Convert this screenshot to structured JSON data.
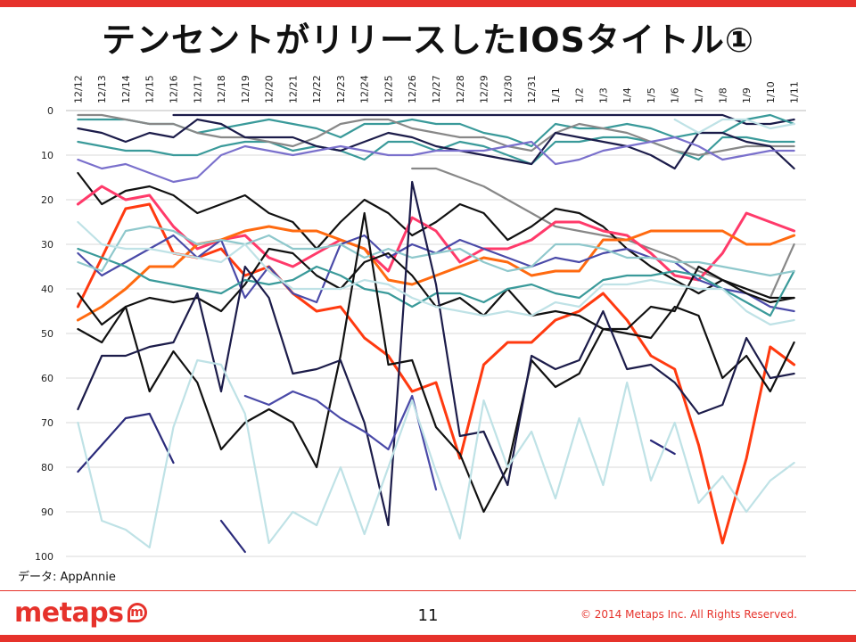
{
  "slide": {
    "title": "テンセントがリリースしたIOSタイトル①",
    "source_note": "データ: AppAnnie",
    "page_number": "11",
    "copyright": "© 2014  Metaps Inc. All Rights Reserved.",
    "logo_text": "metaps",
    "logo_mark": "m"
  },
  "chart_data": {
    "type": "line",
    "title": "",
    "xlabel": "",
    "ylabel": "",
    "categories": [
      "12/12",
      "12/13",
      "12/14",
      "12/15",
      "12/16",
      "12/17",
      "12/18",
      "12/19",
      "12/20",
      "12/21",
      "12/22",
      "12/23",
      "12/24",
      "12/25",
      "12/26",
      "12/27",
      "12/28",
      "12/29",
      "12/30",
      "12/31",
      "1/1",
      "1/2",
      "1/3",
      "1/4",
      "1/5",
      "1/6",
      "1/7",
      "1/8",
      "1/9",
      "1/10",
      "1/11"
    ],
    "y_reversed": true,
    "ylim": [
      0,
      100
    ],
    "yticks": [
      0,
      10,
      20,
      30,
      40,
      50,
      60,
      70,
      80,
      90,
      100
    ],
    "grid": true,
    "colors": {
      "dark_navy": "#1c1c4a",
      "teal": "#3a9a9a",
      "gray": "#888888",
      "slate_blue": "#4a4aa8",
      "periwinkle": "#7a70cc",
      "light_teal": "#8fc8cc",
      "pale_cyan": "#bfe2e6",
      "orange": "#ff6a10",
      "red_orange": "#ff3a10",
      "pink": "#ff3a6a",
      "black": "#111111",
      "navy": "#2a2a7a"
    },
    "series": [
      {
        "color": "#1c1c4a",
        "values": [
          null,
          null,
          null,
          null,
          1,
          1,
          1,
          1,
          1,
          1,
          1,
          1,
          1,
          1,
          1,
          1,
          1,
          1,
          1,
          1,
          1,
          1,
          1,
          1,
          1,
          1,
          1,
          1,
          3,
          3,
          2
        ]
      },
      {
        "color": "#3a9a9a",
        "values": [
          2,
          2,
          2,
          3,
          3,
          5,
          4,
          3,
          2,
          3,
          4,
          6,
          3,
          3,
          2,
          3,
          3,
          5,
          6,
          8,
          3,
          4,
          4,
          3,
          4,
          6,
          5,
          5,
          2,
          1,
          3
        ]
      },
      {
        "color": "#3a9a9a",
        "values": [
          7,
          8,
          9,
          9,
          10,
          10,
          8,
          7,
          7,
          9,
          8,
          9,
          11,
          7,
          7,
          9,
          7,
          8,
          10,
          12,
          7,
          7,
          6,
          6,
          7,
          9,
          11,
          6,
          6,
          7,
          7
        ]
      },
      {
        "color": "#888888",
        "values": [
          1,
          1,
          2,
          3,
          3,
          5,
          6,
          6,
          7,
          8,
          6,
          3,
          2,
          2,
          4,
          5,
          6,
          6,
          8,
          9,
          5,
          3,
          4,
          5,
          7,
          9,
          10,
          9,
          8,
          8,
          8
        ]
      },
      {
        "color": "#1c1c4a",
        "values": [
          4,
          5,
          7,
          5,
          6,
          2,
          3,
          6,
          6,
          6,
          8,
          9,
          7,
          5,
          6,
          8,
          9,
          10,
          11,
          12,
          5,
          6,
          7,
          8,
          10,
          13,
          5,
          5,
          7,
          8,
          13
        ]
      },
      {
        "color": "#7a70cc",
        "values": [
          11,
          13,
          12,
          14,
          16,
          15,
          10,
          8,
          9,
          10,
          9,
          8,
          9,
          10,
          10,
          9,
          9,
          9,
          8,
          7,
          12,
          11,
          9,
          8,
          7,
          6,
          8,
          11,
          10,
          9,
          9
        ]
      },
      {
        "color": "#888888",
        "values": [
          null,
          null,
          null,
          null,
          null,
          null,
          null,
          null,
          null,
          null,
          null,
          null,
          null,
          null,
          13,
          13,
          15,
          17,
          20,
          23,
          26,
          27,
          28,
          29,
          31,
          33,
          36,
          38,
          40,
          42,
          30
        ]
      },
      {
        "color": "#111111",
        "values": [
          14,
          21,
          18,
          17,
          19,
          23,
          21,
          19,
          23,
          25,
          31,
          25,
          20,
          23,
          28,
          25,
          21,
          23,
          29,
          26,
          22,
          23,
          26,
          31,
          35,
          38,
          41,
          38,
          40,
          42,
          42
        ]
      },
      {
        "color": "#ff3a6a",
        "values": [
          21,
          17,
          20,
          19,
          26,
          31,
          29,
          28,
          33,
          35,
          32,
          29,
          31,
          36,
          24,
          27,
          34,
          31,
          31,
          29,
          25,
          25,
          27,
          28,
          32,
          37,
          38,
          32,
          23,
          25,
          27
        ]
      },
      {
        "color": "#ff6a10",
        "values": [
          47,
          44,
          40,
          35,
          35,
          30,
          29,
          27,
          26,
          27,
          27,
          29,
          31,
          38,
          39,
          37,
          35,
          33,
          34,
          37,
          36,
          36,
          29,
          29,
          27,
          27,
          27,
          27,
          30,
          30,
          28
        ]
      },
      {
        "color": "#ff3a10",
        "values": [
          44,
          33,
          22,
          21,
          32,
          33,
          31,
          37,
          35,
          41,
          45,
          44,
          51,
          55,
          63,
          61,
          78,
          57,
          52,
          52,
          47,
          45,
          41,
          47,
          55,
          58,
          75,
          97,
          78,
          53,
          57
        ]
      },
      {
        "color": "#4a4aa8",
        "values": [
          32,
          37,
          34,
          31,
          28,
          33,
          29,
          42,
          35,
          41,
          43,
          30,
          28,
          33,
          30,
          32,
          29,
          31,
          33,
          35,
          33,
          34,
          32,
          31,
          33,
          34,
          38,
          40,
          41,
          44,
          45
        ]
      },
      {
        "color": "#111111",
        "values": [
          41,
          48,
          44,
          42,
          43,
          42,
          45,
          39,
          31,
          32,
          37,
          40,
          34,
          32,
          37,
          44,
          42,
          46,
          40,
          46,
          45,
          46,
          49,
          49,
          44,
          45,
          35,
          38,
          41,
          43,
          42
        ]
      },
      {
        "color": "#3a9a9a",
        "values": [
          31,
          33,
          35,
          38,
          39,
          40,
          41,
          38,
          39,
          38,
          35,
          37,
          40,
          41,
          44,
          41,
          41,
          43,
          40,
          39,
          41,
          42,
          38,
          37,
          37,
          36,
          37,
          40,
          43,
          46,
          36
        ]
      },
      {
        "color": "#8fc8cc",
        "values": [
          34,
          36,
          27,
          26,
          27,
          30,
          29,
          30,
          28,
          31,
          31,
          30,
          33,
          31,
          33,
          32,
          31,
          34,
          36,
          35,
          30,
          30,
          31,
          33,
          33,
          34,
          34,
          35,
          36,
          37,
          36
        ]
      },
      {
        "color": "#111111",
        "values": [
          49,
          52,
          44,
          63,
          54,
          61,
          76,
          70,
          67,
          70,
          80,
          55,
          23,
          57,
          56,
          71,
          77,
          90,
          80,
          56,
          62,
          59,
          49,
          50,
          51,
          44,
          46,
          60,
          55,
          63,
          52
        ]
      },
      {
        "color": "#1c1c4a",
        "values": [
          67,
          55,
          55,
          53,
          52,
          41,
          63,
          35,
          42,
          59,
          58,
          56,
          70,
          93,
          16,
          39,
          73,
          72,
          84,
          55,
          58,
          56,
          45,
          58,
          57,
          61,
          68,
          66,
          51,
          60,
          59
        ]
      },
      {
        "color": "#2a2a7a",
        "values": [
          81,
          75,
          69,
          68,
          79,
          null,
          92,
          99,
          null,
          null,
          null,
          null,
          null,
          null,
          null,
          null,
          null,
          null,
          null,
          null,
          null,
          null,
          null,
          null,
          74,
          77,
          null,
          null,
          null,
          null,
          null
        ]
      },
      {
        "color": "#4a4aa8",
        "values": [
          null,
          null,
          null,
          null,
          null,
          null,
          null,
          64,
          66,
          63,
          65,
          69,
          72,
          76,
          64,
          85,
          null,
          null,
          null,
          null,
          null,
          null,
          null,
          null,
          null,
          null,
          null,
          null,
          null,
          null,
          null
        ]
      },
      {
        "color": "#bfe2e6",
        "values": [
          70,
          92,
          94,
          98,
          71,
          56,
          57,
          68,
          97,
          90,
          93,
          80,
          95,
          80,
          65,
          81,
          96,
          65,
          80,
          72,
          87,
          69,
          84,
          61,
          83,
          70,
          88,
          82,
          90,
          83,
          79
        ]
      },
      {
        "color": "#bfe2e6",
        "values": [
          25,
          30,
          31,
          31,
          32,
          33,
          34,
          30,
          36,
          40,
          40,
          40,
          38,
          39,
          42,
          44,
          45,
          46,
          45,
          46,
          43,
          44,
          39,
          39,
          38,
          39,
          40,
          40,
          45,
          48,
          47
        ]
      },
      {
        "color": "#bfe2e6",
        "values": [
          null,
          null,
          null,
          null,
          null,
          null,
          null,
          null,
          null,
          null,
          null,
          null,
          null,
          null,
          null,
          null,
          null,
          null,
          null,
          null,
          null,
          null,
          null,
          null,
          null,
          2,
          5,
          2,
          2,
          4,
          3
        ]
      }
    ]
  }
}
